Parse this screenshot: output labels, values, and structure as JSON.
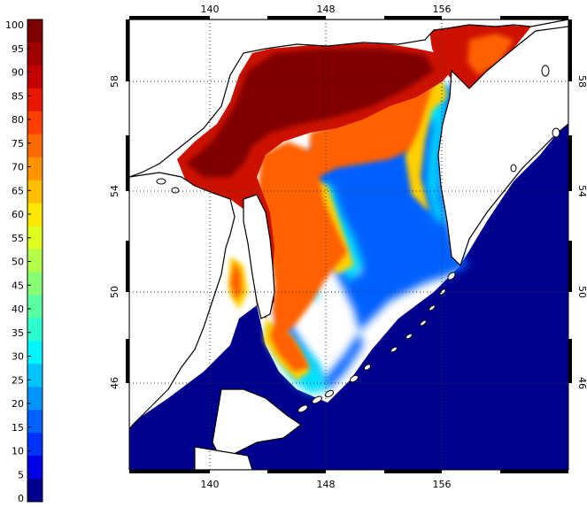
{
  "colorbar": {
    "labels": [
      "100",
      "95",
      "90",
      "85",
      "80",
      "75",
      "70",
      "65",
      "60",
      "55",
      "50",
      "45",
      "40",
      "35",
      "30",
      "25",
      "20",
      "15",
      "10",
      "5",
      "0"
    ],
    "colors": [
      "#7f0000",
      "#a00000",
      "#c40000",
      "#e81800",
      "#ff4000",
      "#ff6a00",
      "#ff9400",
      "#ffbe00",
      "#ffe800",
      "#e0ff1e",
      "#b4ff4a",
      "#86ff76",
      "#5affa2",
      "#2effce",
      "#00f6ff",
      "#00c4ff",
      "#0094ff",
      "#0062ff",
      "#0032ff",
      "#0000e8",
      "#00008f"
    ]
  },
  "map": {
    "lon_ticks": [
      "140",
      "148",
      "156"
    ],
    "lat_ticks": [
      "58",
      "54",
      "50",
      "46"
    ],
    "palette": {
      "ice_max": "#800000",
      "ice_high": "#cc1100",
      "ice_mid": "#ff6000",
      "ice_low": "#ffd000",
      "water_edge_cyan": "#00e0ff",
      "water_edge_blue": "#0060ff",
      "open_water": "#00008f",
      "land": "#ffffff",
      "coastline": "#000000"
    }
  }
}
